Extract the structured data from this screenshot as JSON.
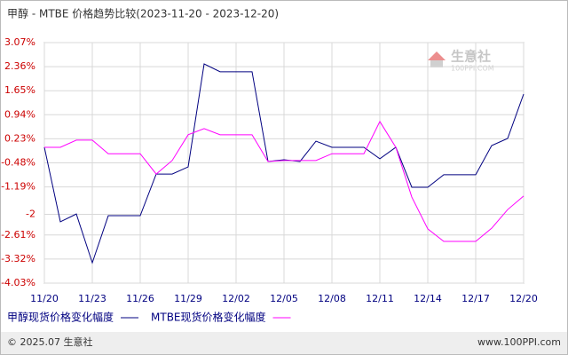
{
  "chart_data": {
    "type": "line",
    "title": "甲醇 - MTBE 价格趋势比较(2023-11-20 - 2023-12-20)",
    "watermark": {
      "name": "生意社",
      "url": "100PPI.COM"
    },
    "categories": [
      "11/20",
      null,
      null,
      "11/23",
      null,
      null,
      "11/26",
      null,
      null,
      "11/29",
      null,
      null,
      "12/02",
      null,
      null,
      "12/05",
      null,
      null,
      "12/08",
      null,
      null,
      "12/11",
      null,
      null,
      "12/14",
      null,
      null,
      "12/17",
      null,
      null,
      "12/20"
    ],
    "series": [
      {
        "name": "甲醇现货价格变化幅度",
        "color": "#000080",
        "values": [
          -0.02,
          -2.22,
          -1.99,
          -3.43,
          -2.04,
          -2.04,
          -2.04,
          -0.81,
          -0.81,
          -0.6,
          2.44,
          2.21,
          2.21,
          2.21,
          -0.44,
          -0.39,
          -0.44,
          0.16,
          -0.02,
          -0.02,
          -0.02,
          -0.36,
          -0.02,
          -1.2,
          -1.2,
          -0.83,
          -0.83,
          -0.83,
          0.03,
          0.24,
          1.55
        ]
      },
      {
        "name": "MTBE现货价格变化幅度",
        "color": "#ff00ff",
        "values": [
          -0.02,
          -0.02,
          0.19,
          0.19,
          -0.21,
          -0.21,
          -0.21,
          -0.81,
          -0.41,
          0.35,
          0.53,
          0.35,
          0.35,
          0.35,
          -0.44,
          -0.41,
          -0.41,
          -0.41,
          -0.21,
          -0.21,
          -0.21,
          0.74,
          -0.02,
          -1.49,
          -2.43,
          -2.8,
          -2.8,
          -2.8,
          -2.41,
          -1.86,
          -1.46
        ]
      }
    ],
    "ylim": [
      -4.03,
      3.07
    ],
    "yticks": [
      {
        "value": 3.07,
        "label": "3.07%"
      },
      {
        "value": 2.36,
        "label": "2.36%"
      },
      {
        "value": 1.65,
        "label": "1.65%"
      },
      {
        "value": 0.94,
        "label": "0.94%"
      },
      {
        "value": 0.23,
        "label": "0.23%"
      },
      {
        "value": -0.48,
        "label": "-0.48%"
      },
      {
        "value": -1.19,
        "label": "-1.19%"
      },
      -2,
      {
        "value": -2.61,
        "label": "-2.61%"
      },
      {
        "value": -3.32,
        "label": "-3.32%"
      },
      {
        "value": -4.03,
        "label": "-4.03%"
      }
    ],
    "grid": true,
    "footer": {
      "left": "© 2025.07 生意社",
      "right": "www.100PPI.com"
    }
  }
}
